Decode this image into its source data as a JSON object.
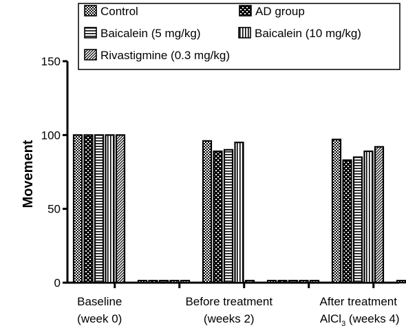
{
  "chart_data": {
    "type": "bar",
    "ylabel": "Movement",
    "ylim": [
      0,
      150
    ],
    "yticks": [
      0,
      50,
      100,
      150
    ],
    "grid": false,
    "legend_position": "top-right",
    "groups": [
      {
        "line1": "Baseline",
        "line2": "(week 0)",
        "values": [
          100,
          100,
          100,
          100,
          100
        ]
      },
      {
        "line1": "",
        "line2": "",
        "values": [
          0,
          0,
          0,
          0,
          0
        ]
      },
      {
        "line1": "Before treatment",
        "line2": "(weeks 2)",
        "values": [
          96,
          89,
          90,
          95,
          0
        ]
      },
      {
        "line1": "",
        "line2": "",
        "values": [
          0,
          0,
          0,
          0,
          0
        ]
      },
      {
        "line1": "After treatment",
        "line2_pre": "AlCl",
        "line2_sub": "3",
        "line2_post": " (weeks 4)",
        "values": [
          97,
          83,
          85,
          89,
          92
        ]
      },
      {
        "line1": "",
        "line2": "",
        "values": [
          0,
          0,
          0,
          0,
          0
        ]
      }
    ],
    "series": [
      {
        "name": "Control",
        "pattern": "checker"
      },
      {
        "name": "AD group",
        "pattern": "bigchecker"
      },
      {
        "name": "Baicalein (5 mg/kg)",
        "pattern": "hlines"
      },
      {
        "name": "Baicalein (10 mg/kg)",
        "pattern": "vlines"
      },
      {
        "name": "Rivastigmine (0.3 mg/kg)",
        "pattern": "diag"
      }
    ]
  }
}
